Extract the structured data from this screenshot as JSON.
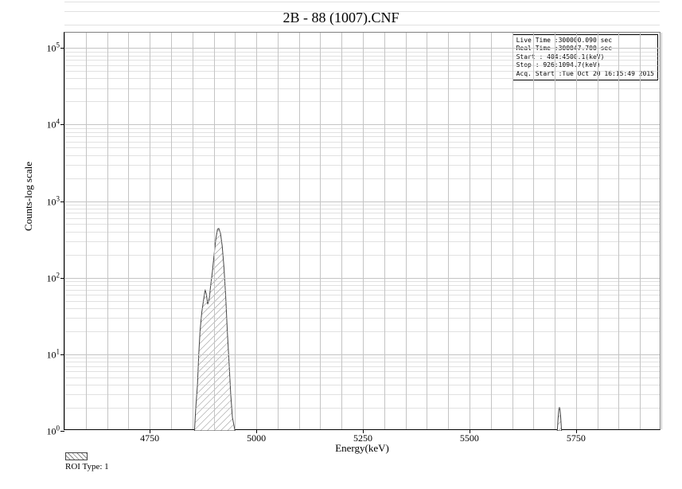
{
  "chart": {
    "type": "log-spectrum",
    "title": "2B - 88 (1007).CNF",
    "xlabel": "Energy(keV)",
    "ylabel": "Counts-log scale",
    "xlim": [
      4550,
      5950
    ],
    "ylim_log": [
      0,
      5.2
    ],
    "xticks": [
      4750,
      5000,
      5250,
      5500,
      5750
    ],
    "yticks_log": [
      0,
      1,
      2,
      3,
      4,
      5
    ],
    "ytick_labels": [
      "10⁰",
      "10¹",
      "10²",
      "10³",
      "10⁴",
      "10⁵"
    ],
    "background_color": "#ffffff",
    "grid_color": "#c4c4c4",
    "axis_color": "#000000",
    "title_fontsize": 18,
    "label_fontsize": 13,
    "tick_fontsize": 12,
    "main_peak": {
      "points_kev_counts": [
        [
          4855,
          1
        ],
        [
          4858,
          2
        ],
        [
          4862,
          4
        ],
        [
          4865,
          10
        ],
        [
          4868,
          20
        ],
        [
          4872,
          35
        ],
        [
          4876,
          50
        ],
        [
          4880,
          70
        ],
        [
          4883,
          60
        ],
        [
          4886,
          45
        ],
        [
          4890,
          55
        ],
        [
          4893,
          80
        ],
        [
          4897,
          120
        ],
        [
          4901,
          200
        ],
        [
          4905,
          320
        ],
        [
          4909,
          430
        ],
        [
          4912,
          440
        ],
        [
          4916,
          380
        ],
        [
          4920,
          260
        ],
        [
          4924,
          140
        ],
        [
          4928,
          60
        ],
        [
          4932,
          20
        ],
        [
          4936,
          8
        ],
        [
          4940,
          3
        ],
        [
          4944,
          1.5
        ],
        [
          4950,
          1
        ]
      ],
      "fill": "hatched",
      "hatch_color": "#888888",
      "stroke": "#444444"
    },
    "secondary_peak": {
      "points_kev_counts": [
        [
          5706,
          1
        ],
        [
          5708,
          1.5
        ],
        [
          5710,
          2
        ],
        [
          5712,
          2
        ],
        [
          5714,
          1.5
        ],
        [
          5716,
          1
        ]
      ],
      "fill": "hatched",
      "hatch_color": "#888888",
      "stroke": "#444444"
    }
  },
  "info_box": {
    "rows": [
      "Live Time :300000.090 sec",
      "Real Time :300047.700 sec",
      "Start :  404:4500.1(keV)",
      "Stop :  926:1094.7(keV)",
      "Acq. Start :Tue Oct 20 16:15:49 2015"
    ]
  },
  "legend": {
    "label": "ROI Type: 1"
  }
}
